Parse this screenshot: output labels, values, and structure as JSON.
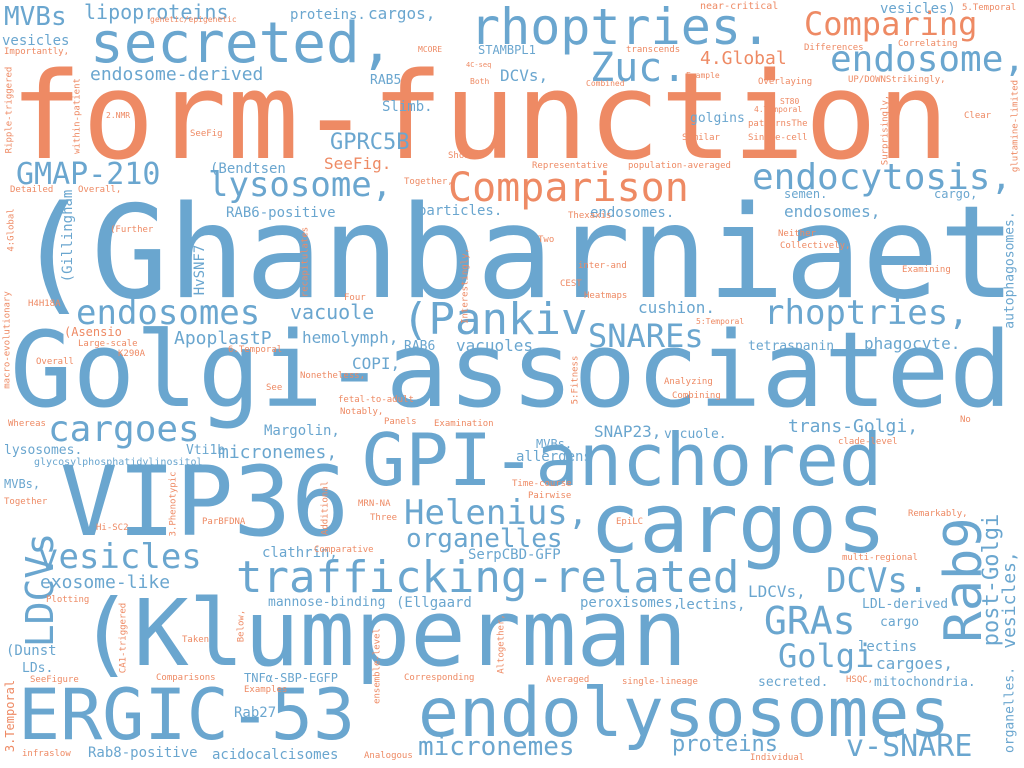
{
  "palette": {
    "blue": "#6aa6cf",
    "orange": "#ee8a64",
    "background": "#ffffff"
  },
  "words": {
    "w_ghanbarniaet": "(Ghanbarniaet",
    "w_form_function": "form-function",
    "w_golgi_associated": "Golgi-associated",
    "w_vip36": "VIP36",
    "w_klumperman": "(Klumperman",
    "w_gpi_anchored": "GPI-anchored",
    "w_ergic_53": "ERGIC-53",
    "w_endolysosomes": "endolysosomes",
    "w_cargos": "cargos",
    "w_rhoptries1": "rhoptries.",
    "w_secreted": "secreted,",
    "w_trafficking_related": "trafficking-related",
    "w_comparing": "Comparing",
    "w_comparison": "Comparison",
    "w_rab9": "Rab9",
    "w_lysosome": "lysosome,",
    "w_endocytosis": "endocytosis,",
    "w_pankiv": "(Pankiv",
    "w_endosomes_big": "endosomes",
    "w_cargoes": "cargoes",
    "w_helenius": "Helenius,",
    "w_organelles": "organelles",
    "w_vesicles_big": "vesicles",
    "w_gmap": "GMAP-210",
    "w_zuc": "Zuc.",
    "w_endosome": "endosome,",
    "w_rhoptries2": "rhoptries,",
    "w_snares": "SNAREs",
    "w_dcvs_big": "DCVs.",
    "w_gras": "GRAs",
    "w_golgi_small": "Golgi",
    "w_micronemes_big": "micronemes",
    "w_proteins_mid": "proteins",
    "w_vsnare": "v-SNARE",
    "w_ldcvs_vert": "LDCVs",
    "w_post_golgi": "post-Golgi",
    "w_vesicles_vert": "vesicles,",
    "w_mvbs": "MVBs",
    "w_lipoproteins": "lipoproteins",
    "w_proteins_top": "proteins.",
    "w_cargos_top": "cargos,",
    "w_vesicles_paren": "vesicles)",
    "w_near_critical": "near-critical",
    "w_5temporal_top": "5.Temporal",
    "w_genetic": "genetic/epigenetic",
    "w_vesicles_l": "vesicles",
    "w_importantly": "Importantly,",
    "w_mcore": "MCORE",
    "w_4cseq": "4C-seq",
    "w_stambpl1": "STAMBPL1",
    "w_transcends": "transcends",
    "w_4global": "4.Global",
    "w_differences": "Differences",
    "w_correlating": "Correlating",
    "w_updown": "UP/DOWNStrikingly,",
    "w_glutamine": "glutamine-limited",
    "w_endosome_derived": "endosome-derived",
    "w_rab5": "RAB5",
    "w_both": "Both",
    "w_dcvs_mid": "DCVs,",
    "w_example": "Example",
    "w_combined": "Combined",
    "w_overlaying": "Overlaying",
    "w_ripple": "Ripple-triggered",
    "w_2nmr": "2.NMR",
    "w_within_patient": "within-patient",
    "w_slimb": "Slimb.",
    "w_st80": "ST80",
    "w_4temporal_mid": "4.Temporal",
    "w_patterns": "patternsThe",
    "w_single_cell": "Single-cell",
    "w_golgins": "golgins",
    "w_clear": "Clear",
    "w_surprisingly": "Surprisingly,",
    "w_seefig_s": "SeeFig",
    "w_similar": "Similar",
    "w_gprc5b": "GPRC5B",
    "w_shown": "Shown",
    "w_seefig_m": "SeeFig.",
    "w_bendtsen": "(Bendtsen",
    "w_representative": "Representative",
    "w_population": "population-averaged",
    "w_together_top": "Together,",
    "w_detailed": "Detailed",
    "w_overall_top": "Overall,",
    "w_semen": "semen.",
    "w_rab6_pos": "RAB6-positive",
    "w_particles": "particles.",
    "w_endosomes_mid": "endosomes.",
    "w_endosomes_r": "endosomes,",
    "w_cargo_r": "cargo,",
    "w_4global_vert": "4:Global",
    "w_gillingham": "(Gillingham",
    "w_further": "(Further",
    "w_thexaxis": "Thexaxis",
    "w_two": "Two",
    "w_neither": "Neither",
    "w_collectively": "Collectively,",
    "w_autophagosomes": "autophagosomes.",
    "w_hvsnf7": "HvSNF7",
    "w_recapitulates": "recapitulates",
    "w_interestingly": "Interestingly,",
    "w_inter_and": "inter-and",
    "w_examining": "Examining",
    "w_cest": "CEST",
    "w_heatmaps": "Heatmaps",
    "w_four": "Four",
    "w_macro_evo": "macro-evolutionary",
    "w_vacuole_mid": "vacuole",
    "w_cushion": "cushion.",
    "w_h4h18a": "H4H18A",
    "w_asensio": "(Asensio",
    "w_apoplastp": "ApoplastP",
    "w_hemolymph": "hemolymph,",
    "w_5temporal_mid": "5:Temporal",
    "w_large_scale": "Large-scale",
    "w_k290a": "K290A",
    "w_6temporal": "6.Temporal",
    "w_rab6": "RAB6",
    "w_vacuoles": "vacuoles.",
    "w_5fitness": "5:Fitness",
    "w_tetraspanin": "tetraspanin",
    "w_phagocyte": "phagocyte.",
    "w_overall_l": "Overall",
    "w_copi": "COPI,",
    "w_see": "See",
    "w_nonetheless": "Nonetheless,",
    "w_fetal": "fetal-to-adult",
    "w_analyzing": "Analyzing",
    "w_combining": "Combining",
    "w_notably": "Notably,",
    "w_panels": "Panels",
    "w_examination": "Examination",
    "w_whereas": "Whereas",
    "w_margolin": "Margolin,",
    "w_no": "No",
    "w_snap23": "SNAP23,",
    "w_trans_golgi": "trans-Golgi,",
    "w_vacuole_r": "vacuole.",
    "w_clade": "clade-level",
    "w_lysosomes_l": "lysosomes.",
    "w_vti1b": "Vti1b",
    "w_micronemes_mid": "micronemes,",
    "w_mvbs_dot": "MVBs.",
    "w_allergens": "allergens",
    "w_glycosyl": "glycosylphosphatidylinositol",
    "w_mvbs_comma": "MVBs,",
    "w_3phenotypic": "3.Phenotypic",
    "w_time_course": "Time-course",
    "w_together_l": "Together",
    "w_mrn_na": "MRN-NA",
    "w_additional": "Additional",
    "w_pairwise": "Pairwise",
    "w_three": "Three",
    "w_hi_sc2": "Hi-SC2",
    "w_parbfdna": "ParBFDNA",
    "w_remarkably": "Remarkably,",
    "w_epilc": "EpiLC",
    "w_serpcbd": "SerpCBD-GFP",
    "w_clathrin": "clathrin,",
    "w_comparative": "Comparative",
    "w_multi_regional": "multi-regional",
    "w_exosome_like": "exosome-like",
    "w_ldcvs_mid": "LDCVs,",
    "w_plotting": "Plotting",
    "w_mannose": "mannose-binding",
    "w_ellgaard": "(Ellgaard",
    "w_peroxisomes": "peroxisomes,",
    "w_lectins_mid": "lectins,",
    "w_ldl": "LDL-derived",
    "w_cargo_r2": "cargo",
    "w_ca1": "CA1-triggered",
    "w_below": "Below,",
    "w_taken": "Taken",
    "w_ensemble": "ensemble-level",
    "w_altogether": "Altogether,",
    "w_lectins_r": "lectins",
    "w_dunst": "(Dunst",
    "w_cargoes_r": "cargoes,",
    "w_lds": "LDs.",
    "w_3temporal": "3.Temporal",
    "w_seefigure": "SeeFigure",
    "w_comparisons": "Comparisons",
    "w_examples": "Examples",
    "w_tnfa": "TNFα-SBP-EGFP",
    "w_corresponding": "Corresponding",
    "w_averaged": "Averaged",
    "w_single_lineage": "single-lineage",
    "w_secreted_r": "secreted.",
    "w_hsqc": "HSQC,",
    "w_mitochondria": "mitochondria.",
    "w_organelles_vert": "organelles.",
    "w_rab27": "Rab27",
    "w_rab8": "Rab8-positive",
    "w_acidocalcisomes": "acidocalcisomes",
    "w_infraslow": "infraslow",
    "w_analogous": "Analogous",
    "w_individual": "Individual"
  }
}
